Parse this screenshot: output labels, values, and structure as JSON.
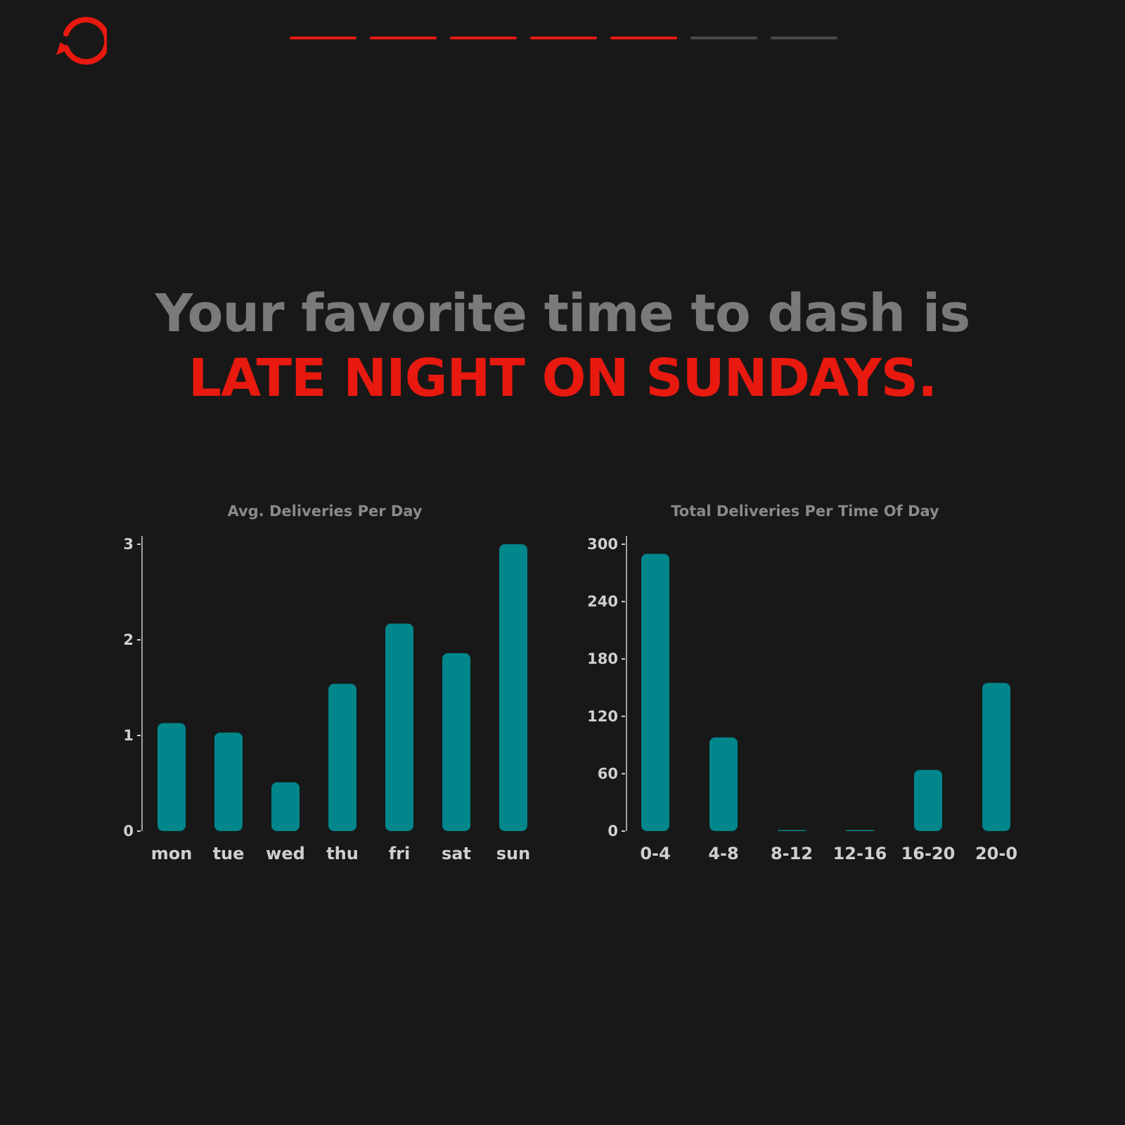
{
  "theme": {
    "accent": "#e8190f",
    "bar_color": "#00868b",
    "axis_color": "#d0d0d0",
    "progress_inactive": "#4a4a4a"
  },
  "header": {
    "icon": "replay-icon",
    "progress": {
      "total": 7,
      "completed": 5
    }
  },
  "headline": {
    "line1": "Your favorite time to dash is",
    "line2": "LATE NIGHT ON SUNDAYS."
  },
  "chart_data": [
    {
      "type": "bar",
      "title": "Avg. Deliveries Per Day",
      "categories": [
        "mon",
        "tue",
        "wed",
        "thu",
        "fri",
        "sat",
        "sun"
      ],
      "values": [
        1.13,
        1.03,
        0.51,
        1.54,
        2.17,
        1.86,
        3.0
      ],
      "ylim": [
        0,
        3
      ],
      "yticks": [
        0,
        1,
        2,
        3
      ],
      "xlabel": "",
      "ylabel": "",
      "grid": false
    },
    {
      "type": "bar",
      "title": "Total Deliveries Per Time Of Day",
      "categories": [
        "0-4",
        "4-8",
        "8-12",
        "12-16",
        "16-20",
        "20-0"
      ],
      "values": [
        290,
        98,
        0,
        0,
        64,
        155
      ],
      "ylim": [
        0,
        300
      ],
      "yticks": [
        0,
        60,
        120,
        180,
        240,
        300
      ],
      "xlabel": "",
      "ylabel": "",
      "grid": false
    }
  ]
}
